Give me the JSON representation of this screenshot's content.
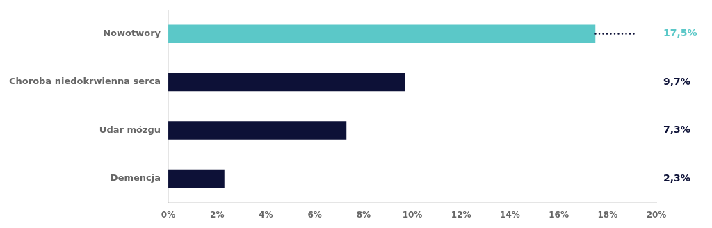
{
  "chart_data": {
    "type": "bar",
    "orientation": "horizontal",
    "categories": [
      "Demencja",
      "Udar mózgu",
      "Choroba niedokrwienna serca",
      "Nowotwory"
    ],
    "values": [
      2.3,
      7.3,
      9.7,
      17.5
    ],
    "value_labels": [
      "2,3%",
      "7,3%",
      "9,7%",
      "17,5%"
    ],
    "data_labels": true,
    "colors": [
      "#0d1137",
      "#0d1137",
      "#0d1137",
      "#5bc8c8"
    ],
    "xlim": [
      0,
      20
    ],
    "xticks": [
      {
        "value": 0,
        "label": "0%"
      },
      {
        "value": 2,
        "label": "2%"
      },
      {
        "value": 4,
        "label": "4%"
      },
      {
        "value": 6,
        "label": "6%"
      },
      {
        "value": 8,
        "label": "8%"
      },
      {
        "value": 10,
        "label": "10%"
      },
      {
        "value": 12,
        "label": "12%"
      },
      {
        "value": 14,
        "label": "14%"
      },
      {
        "value": 16,
        "label": "16%"
      },
      {
        "value": 18,
        "label": "18%"
      },
      {
        "value": 20,
        "label": "20%"
      }
    ],
    "annotations": [
      {
        "category": "Nowotwory",
        "x_end": 19.2,
        "line_style": "dotted",
        "color": "#0d1137"
      }
    ],
    "grid": false
  }
}
